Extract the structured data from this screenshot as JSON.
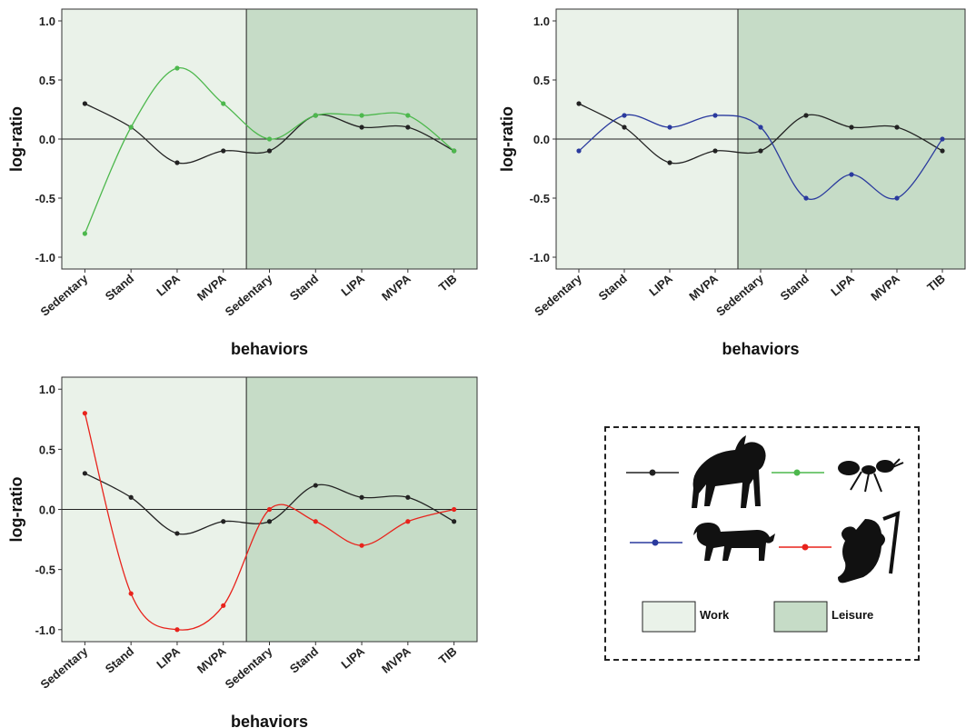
{
  "colors": {
    "work_bg": "#eaf2e9",
    "leisure_bg": "#c6dcc7",
    "chimp": "#222222",
    "ant": "#4db84d",
    "lion": "#2a3a9e",
    "koala": "#e8231c"
  },
  "chart_data": [
    {
      "type": "line",
      "categories": [
        "Sedentary",
        "Stand",
        "LIPA",
        "MVPA",
        "Sedentary",
        "Stand",
        "LIPA",
        "MVPA",
        "TIB"
      ],
      "xlabel": "behaviors",
      "ylabel": "log-ratio",
      "ylim": [
        -1.1,
        1.1
      ],
      "yticks": [
        "1.0",
        "0.5",
        "0.0",
        "-0.5",
        "-1.0"
      ],
      "regions": [
        "Work",
        "Leisure"
      ],
      "series": [
        {
          "icon": "chimpanzee-icon",
          "color": "#222222",
          "values": [
            0.3,
            0.1,
            -0.2,
            -0.1,
            -0.1,
            0.2,
            0.1,
            0.1,
            -0.1
          ]
        },
        {
          "icon": "ant-icon",
          "color": "#4db84d",
          "values": [
            -0.8,
            0.1,
            0.6,
            0.3,
            0.0,
            0.2,
            0.2,
            0.2,
            -0.1
          ]
        }
      ]
    },
    {
      "type": "line",
      "categories": [
        "Sedentary",
        "Stand",
        "LIPA",
        "MVPA",
        "Sedentary",
        "Stand",
        "LIPA",
        "MVPA",
        "TIB"
      ],
      "xlabel": "behaviors",
      "ylabel": "log-ratio",
      "ylim": [
        -1.1,
        1.1
      ],
      "yticks": [
        "1.0",
        "0.5",
        "0.0",
        "-0.5",
        "-1.0"
      ],
      "regions": [
        "Work",
        "Leisure"
      ],
      "series": [
        {
          "icon": "chimpanzee-icon",
          "color": "#222222",
          "values": [
            0.3,
            0.1,
            -0.2,
            -0.1,
            -0.1,
            0.2,
            0.1,
            0.1,
            -0.1
          ]
        },
        {
          "icon": "lion-icon",
          "color": "#2a3a9e",
          "values": [
            -0.1,
            0.2,
            0.1,
            0.2,
            0.1,
            -0.5,
            -0.3,
            -0.5,
            0.0
          ]
        }
      ]
    },
    {
      "type": "line",
      "categories": [
        "Sedentary",
        "Stand",
        "LIPA",
        "MVPA",
        "Sedentary",
        "Stand",
        "LIPA",
        "MVPA",
        "TIB"
      ],
      "xlabel": "behaviors",
      "ylabel": "log-ratio",
      "ylim": [
        -1.1,
        1.1
      ],
      "yticks": [
        "1.0",
        "0.5",
        "0.0",
        "-0.5",
        "-1.0"
      ],
      "regions": [
        "Work",
        "Leisure"
      ],
      "series": [
        {
          "icon": "chimpanzee-icon",
          "color": "#222222",
          "values": [
            0.3,
            0.1,
            -0.2,
            -0.1,
            -0.1,
            0.2,
            0.1,
            0.1,
            -0.1
          ]
        },
        {
          "icon": "koala-icon",
          "color": "#e8231c",
          "values": [
            0.8,
            -0.7,
            -1.0,
            -0.8,
            0.0,
            -0.1,
            -0.3,
            -0.1,
            0.0
          ]
        }
      ]
    }
  ],
  "legend": {
    "entries": [
      {
        "icon": "chimpanzee-icon",
        "color": "#222222"
      },
      {
        "icon": "ant-icon",
        "color": "#4db84d"
      },
      {
        "icon": "lion-icon",
        "color": "#2a3a9e"
      },
      {
        "icon": "koala-icon",
        "color": "#e8231c"
      }
    ],
    "work_label": "Work",
    "leisure_label": "Leisure"
  }
}
